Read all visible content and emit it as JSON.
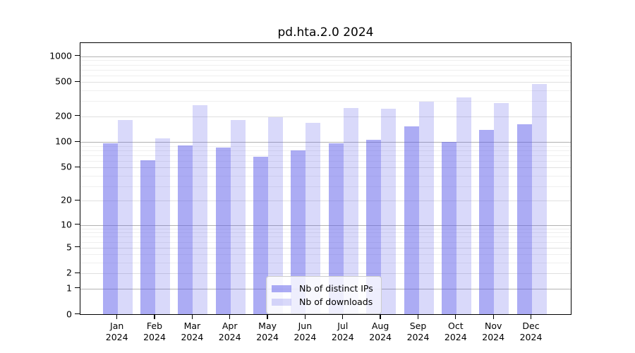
{
  "title": "pd.hta.2.0 2024",
  "legend": {
    "entries": [
      {
        "label": "Nb of distinct IPs",
        "color": "#acacf2"
      },
      {
        "label": "Nb of downloads",
        "color": "#d9d9f7"
      }
    ]
  },
  "colors": {
    "bar_fill_base": "#5959e9",
    "bar_alpha_distinct_ips": 0.5,
    "bar_alpha_downloads": 0.23,
    "grid_major": "#b2b2b2",
    "grid_mid": "#e0e0e0",
    "grid_minor": "#efefef",
    "axis": "#000000"
  },
  "chart_data": {
    "type": "bar",
    "title": "pd.hta.2.0 2024",
    "xlabel": "",
    "ylabel": "",
    "y_scale": "log10(1+x)",
    "ylim": [
      0,
      1440
    ],
    "grid": true,
    "legend_position": "lower center",
    "categories": [
      "Jan",
      "Feb",
      "Mar",
      "Apr",
      "May",
      "Jun",
      "Jul",
      "Aug",
      "Sep",
      "Oct",
      "Nov",
      "Dec"
    ],
    "x_year_label": "2024",
    "yticks": [
      0,
      1,
      2,
      5,
      10,
      20,
      50,
      100,
      200,
      500,
      1000
    ],
    "grid_major_values": [
      1,
      10,
      100,
      1000
    ],
    "grid_mid_values": [
      2,
      5,
      20,
      50,
      200,
      500
    ],
    "grid_minor_values": [
      3,
      4,
      6,
      7,
      8,
      9,
      30,
      40,
      60,
      70,
      80,
      90,
      300,
      400,
      600,
      700,
      800,
      900
    ],
    "series": [
      {
        "name": "Nb of distinct IPs",
        "values": [
          95,
          60,
          91,
          85,
          66,
          79,
          95,
          105,
          150,
          99,
          138,
          159
        ]
      },
      {
        "name": "Nb of downloads",
        "values": [
          180,
          110,
          265,
          178,
          193,
          166,
          249,
          241,
          295,
          328,
          284,
          470
        ]
      }
    ]
  }
}
